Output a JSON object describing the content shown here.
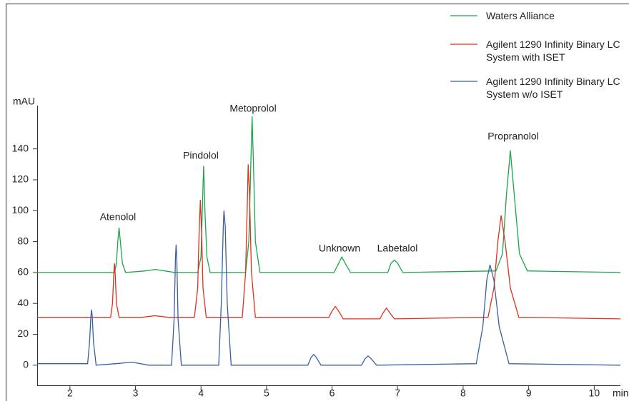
{
  "chart_data": {
    "type": "line",
    "x_label": "min",
    "y_label": "mAU",
    "xlim": [
      1.5,
      10.4
    ],
    "ylim": [
      -13,
      168
    ],
    "xticks": [
      2,
      3,
      4,
      5,
      6,
      7,
      8,
      9,
      10
    ],
    "yticks": [
      0,
      20,
      40,
      60,
      80,
      100,
      120,
      140
    ],
    "annotations": [
      "Atenolol",
      "Pindolol",
      "Metoprolol",
      "Unknown",
      "Labetalol",
      "Propranolol"
    ],
    "series": [
      {
        "name": "Waters Alliance",
        "color": "#1aa64a",
        "x": [
          1.5,
          2.68,
          2.71,
          2.73,
          2.75,
          2.77,
          2.8,
          2.85,
          3.15,
          3.3,
          3.45,
          3.6,
          3.95,
          4.0,
          4.02,
          4.04,
          4.06,
          4.09,
          4.14,
          4.68,
          4.73,
          4.76,
          4.78,
          4.8,
          4.83,
          4.9,
          6.03,
          6.1,
          6.15,
          6.2,
          6.28,
          6.85,
          6.9,
          6.95,
          7.0,
          7.08,
          8.5,
          8.6,
          8.66,
          8.72,
          8.78,
          8.86,
          8.98,
          10.4
        ],
        "values": [
          60,
          60,
          66,
          80,
          89,
          80,
          66,
          60,
          61,
          62,
          61,
          60,
          60,
          70,
          100,
          129,
          100,
          70,
          60,
          60,
          80,
          130,
          161,
          130,
          80,
          60,
          60,
          66,
          70,
          66,
          60,
          60,
          66,
          68,
          66,
          60,
          61,
          72,
          110,
          139,
          110,
          72,
          61,
          60
        ]
      },
      {
        "name": "Agilent 1290 Infinity Binary LC System with ISET",
        "color": "#e0301e",
        "x": [
          1.5,
          2.62,
          2.65,
          2.67,
          2.68,
          2.69,
          2.71,
          2.75,
          3.1,
          3.3,
          3.5,
          3.9,
          3.95,
          3.97,
          3.99,
          4.01,
          4.03,
          4.08,
          4.63,
          4.68,
          4.71,
          4.72,
          4.74,
          4.77,
          4.83,
          5.95,
          6.0,
          6.05,
          6.1,
          6.17,
          6.73,
          6.78,
          6.83,
          6.88,
          6.95,
          8.38,
          8.47,
          8.53,
          8.58,
          8.64,
          8.72,
          8.85,
          10.4
        ],
        "values": [
          31,
          31,
          40,
          60,
          66,
          60,
          40,
          31,
          31,
          32,
          31,
          31,
          50,
          85,
          107,
          85,
          50,
          31,
          31,
          60,
          110,
          130,
          110,
          60,
          31,
          31,
          35,
          38,
          35,
          30,
          30,
          34,
          37,
          34,
          30,
          31,
          50,
          80,
          97,
          80,
          50,
          31,
          30
        ]
      },
      {
        "name": "Agilent 1290 Infinity Binary LC System w/o ISET",
        "color": "#3a5fa0",
        "x": [
          1.5,
          2.27,
          2.3,
          2.32,
          2.33,
          2.34,
          2.36,
          2.4,
          2.7,
          2.95,
          3.2,
          3.55,
          3.59,
          3.61,
          3.62,
          3.63,
          3.65,
          3.7,
          4.27,
          4.31,
          4.34,
          4.35,
          4.37,
          4.4,
          4.46,
          5.63,
          5.68,
          5.72,
          5.76,
          5.83,
          6.45,
          6.5,
          6.55,
          6.6,
          6.68,
          8.2,
          8.3,
          8.36,
          8.41,
          8.47,
          8.55,
          8.7,
          10.4
        ],
        "values": [
          1,
          1,
          15,
          32,
          36,
          32,
          15,
          0,
          1,
          2,
          0,
          0,
          30,
          70,
          78,
          70,
          30,
          0,
          0,
          40,
          90,
          100,
          90,
          40,
          0,
          0,
          5,
          7,
          5,
          0,
          0,
          4,
          6,
          4,
          0,
          1,
          25,
          55,
          65,
          55,
          25,
          1,
          0
        ]
      }
    ]
  }
}
